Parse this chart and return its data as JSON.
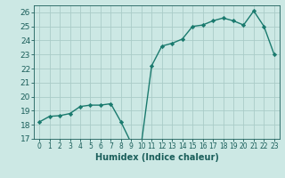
{
  "x": [
    0,
    1,
    2,
    3,
    4,
    5,
    6,
    7,
    8,
    9,
    10,
    11,
    12,
    13,
    14,
    15,
    16,
    17,
    18,
    19,
    20,
    21,
    22,
    23
  ],
  "y": [
    18.2,
    18.6,
    18.65,
    18.8,
    19.3,
    19.4,
    19.4,
    19.5,
    18.2,
    16.7,
    16.7,
    22.2,
    23.6,
    23.8,
    24.1,
    25.0,
    25.1,
    25.4,
    25.6,
    25.4,
    25.1,
    26.1,
    25.0,
    23.0
  ],
  "line_color": "#1a7a6e",
  "marker": "D",
  "marker_size": 2.2,
  "background_color": "#cce8e4",
  "grid_color": "#aaccc8",
  "xlabel": "Humidex (Indice chaleur)",
  "ylim": [
    17,
    26.5
  ],
  "xlim": [
    -0.5,
    23.5
  ],
  "yticks": [
    17,
    18,
    19,
    20,
    21,
    22,
    23,
    24,
    25,
    26
  ],
  "xticks": [
    0,
    1,
    2,
    3,
    4,
    5,
    6,
    7,
    8,
    9,
    10,
    11,
    12,
    13,
    14,
    15,
    16,
    17,
    18,
    19,
    20,
    21,
    22,
    23
  ],
  "tick_color": "#1a5e5a",
  "font_color": "#1a5e5a",
  "axis_color": "#1a5e5a",
  "ytick_fontsize": 6.5,
  "xtick_fontsize": 5.5,
  "xlabel_fontsize": 7.0
}
